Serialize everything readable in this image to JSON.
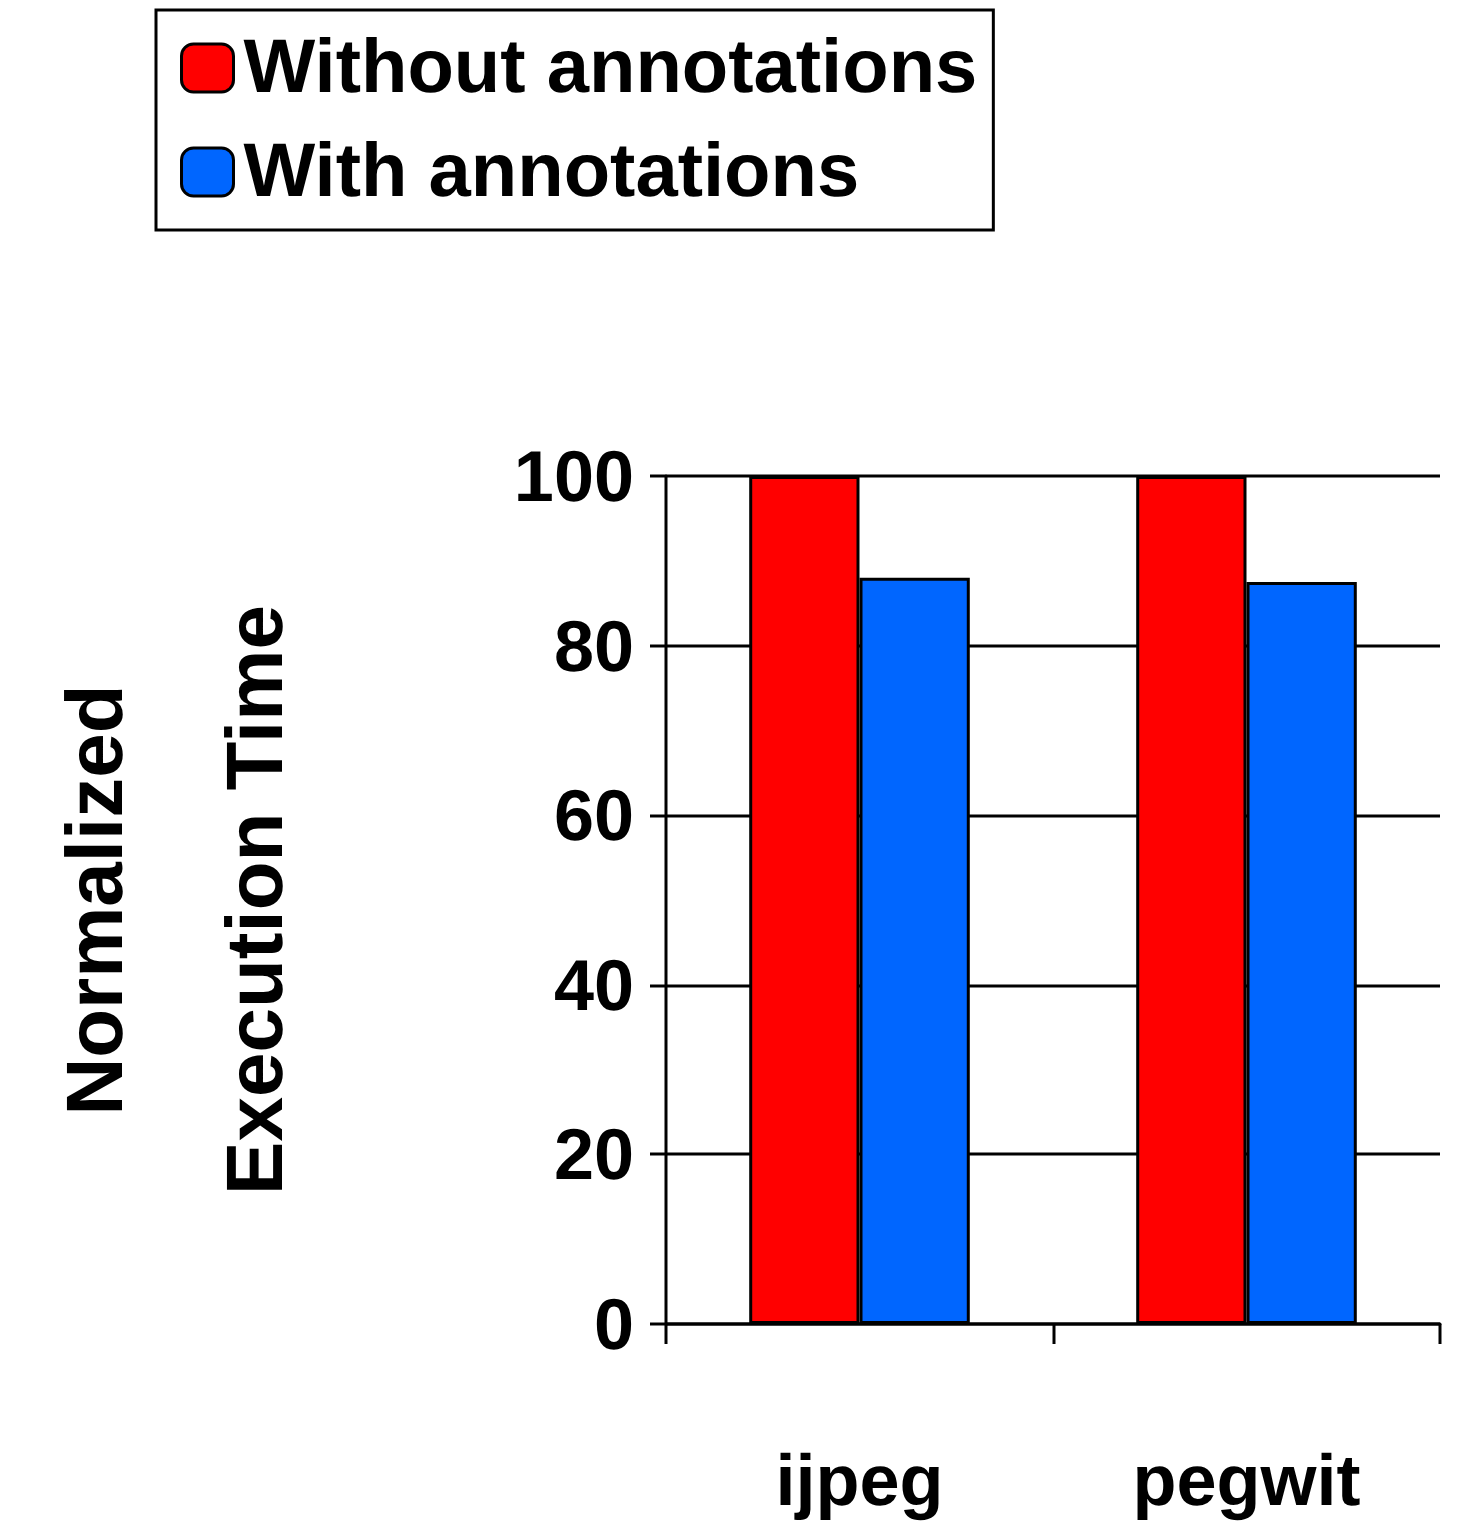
{
  "chart_data": {
    "type": "bar",
    "ylabel": "Normalized\nExecution Time",
    "categories": [
      "ijpeg",
      "pegwit"
    ],
    "series": [
      {
        "name": "Without annotations",
        "color": "#ff0000",
        "values": [
          100,
          100
        ]
      },
      {
        "name": "With annotations",
        "color": "#0066ff",
        "values": [
          88,
          87.5
        ]
      }
    ],
    "ylim": [
      0,
      100
    ],
    "yticks": [
      0,
      20,
      40,
      60,
      80,
      100
    ],
    "grid": "y",
    "legend": "top left"
  }
}
